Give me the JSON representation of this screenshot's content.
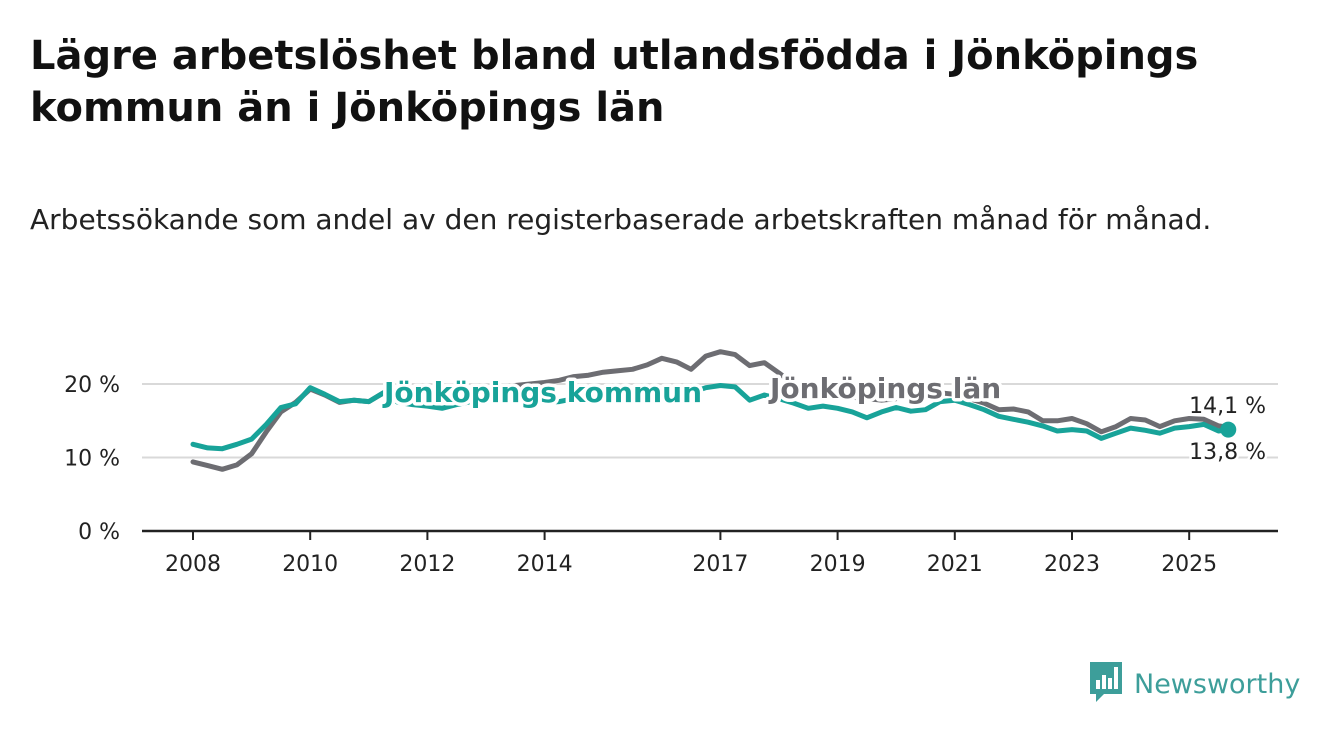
{
  "title": "Lägre arbetslöshet bland utlandsfödda i Jönköpings kommun än i Jönköpings län",
  "subtitle": "Arbetssökande som andel av den registerbaserade arbetskraften månad för månad.",
  "brand": {
    "name": "Newsworthy",
    "logo_icon": "bar-chart-badge-icon",
    "color": "#3d9e9a"
  },
  "chart_data": {
    "type": "line",
    "ylim": [
      0,
      20
    ],
    "yticks": [
      {
        "value": 0,
        "label": "0 %"
      },
      {
        "value": 10,
        "label": "10 %"
      },
      {
        "value": 20,
        "label": "20 %"
      }
    ],
    "xticks": [
      "2008",
      "2010",
      "2012",
      "2014",
      "2017",
      "2019",
      "2021",
      "2023",
      "2025"
    ],
    "grid": true,
    "legend": "inline labels",
    "series": [
      {
        "name": "Jönköpings län",
        "color": "#6d6d72",
        "end_label": "14,1 %",
        "points": [
          [
            "2008-01",
            9.4
          ],
          [
            "2008-04",
            8.9
          ],
          [
            "2008-07",
            8.4
          ],
          [
            "2008-10",
            9.0
          ],
          [
            "2009-01",
            10.5
          ],
          [
            "2009-04",
            13.5
          ],
          [
            "2009-07",
            16.2
          ],
          [
            "2009-10",
            17.5
          ],
          [
            "2010-01",
            19.3
          ],
          [
            "2010-04",
            18.5
          ],
          [
            "2010-07",
            17.5
          ],
          [
            "2010-10",
            17.8
          ],
          [
            "2011-01",
            17.6
          ],
          [
            "2011-04",
            18.8
          ],
          [
            "2011-07",
            17.8
          ],
          [
            "2011-10",
            17.5
          ],
          [
            "2012-01",
            17.8
          ],
          [
            "2012-04",
            18.5
          ],
          [
            "2012-07",
            18.8
          ],
          [
            "2012-10",
            19.0
          ],
          [
            "2013-01",
            19.2
          ],
          [
            "2013-04",
            19.5
          ],
          [
            "2013-07",
            19.8
          ],
          [
            "2013-10",
            20.0
          ],
          [
            "2014-01",
            20.2
          ],
          [
            "2014-04",
            20.5
          ],
          [
            "2014-07",
            21.0
          ],
          [
            "2014-10",
            21.2
          ],
          [
            "2015-01",
            21.6
          ],
          [
            "2015-04",
            21.8
          ],
          [
            "2015-07",
            22.0
          ],
          [
            "2015-10",
            22.6
          ],
          [
            "2016-01",
            23.5
          ],
          [
            "2016-04",
            23.0
          ],
          [
            "2016-07",
            22.0
          ],
          [
            "2016-10",
            23.8
          ],
          [
            "2017-01",
            24.4
          ],
          [
            "2017-04",
            24.0
          ],
          [
            "2017-07",
            22.5
          ],
          [
            "2017-10",
            22.9
          ],
          [
            "2018-01",
            21.5
          ],
          [
            "2018-04",
            20.0
          ],
          [
            "2018-07",
            19.0
          ],
          [
            "2018-10",
            18.6
          ],
          [
            "2019-01",
            18.4
          ],
          [
            "2019-04",
            18.2
          ],
          [
            "2019-07",
            18.0
          ],
          [
            "2019-10",
            17.8
          ],
          [
            "2020-01",
            18.0
          ],
          [
            "2020-04",
            18.3
          ],
          [
            "2020-07",
            18.5
          ],
          [
            "2020-10",
            18.8
          ],
          [
            "2021-01",
            18.6
          ],
          [
            "2021-04",
            18.0
          ],
          [
            "2021-07",
            17.4
          ],
          [
            "2021-10",
            16.5
          ],
          [
            "2022-01",
            16.6
          ],
          [
            "2022-04",
            16.2
          ],
          [
            "2022-07",
            15.0
          ],
          [
            "2022-10",
            15.0
          ],
          [
            "2023-01",
            15.3
          ],
          [
            "2023-04",
            14.6
          ],
          [
            "2023-07",
            13.5
          ],
          [
            "2023-10",
            14.2
          ],
          [
            "2024-01",
            15.3
          ],
          [
            "2024-04",
            15.1
          ],
          [
            "2024-07",
            14.2
          ],
          [
            "2024-10",
            15.0
          ],
          [
            "2025-01",
            15.3
          ],
          [
            "2025-04",
            15.2
          ],
          [
            "2025-07",
            14.3
          ],
          [
            "2025-09",
            14.1
          ]
        ]
      },
      {
        "name": "Jönköpings kommun",
        "color": "#18a399",
        "end_label": "13,8 %",
        "points": [
          [
            "2008-01",
            11.8
          ],
          [
            "2008-04",
            11.3
          ],
          [
            "2008-07",
            11.2
          ],
          [
            "2008-10",
            11.8
          ],
          [
            "2009-01",
            12.5
          ],
          [
            "2009-04",
            14.5
          ],
          [
            "2009-07",
            16.8
          ],
          [
            "2009-10",
            17.3
          ],
          [
            "2010-01",
            19.5
          ],
          [
            "2010-04",
            18.6
          ],
          [
            "2010-07",
            17.6
          ],
          [
            "2010-10",
            17.8
          ],
          [
            "2011-01",
            17.6
          ],
          [
            "2011-04",
            18.8
          ],
          [
            "2011-07",
            17.5
          ],
          [
            "2011-10",
            17.2
          ],
          [
            "2012-01",
            17.0
          ],
          [
            "2012-04",
            16.7
          ],
          [
            "2012-07",
            17.2
          ],
          [
            "2012-10",
            17.6
          ],
          [
            "2013-01",
            18.0
          ],
          [
            "2013-04",
            18.2
          ],
          [
            "2013-07",
            18.0
          ],
          [
            "2013-10",
            17.8
          ],
          [
            "2014-01",
            17.5
          ],
          [
            "2014-04",
            17.6
          ],
          [
            "2014-07",
            18.0
          ],
          [
            "2014-10",
            18.3
          ],
          [
            "2015-01",
            18.5
          ],
          [
            "2015-04",
            18.6
          ],
          [
            "2015-07",
            18.8
          ],
          [
            "2015-10",
            19.0
          ],
          [
            "2016-01",
            19.2
          ],
          [
            "2016-04",
            19.0
          ],
          [
            "2016-07",
            18.8
          ],
          [
            "2016-10",
            19.5
          ],
          [
            "2017-01",
            19.8
          ],
          [
            "2017-04",
            19.6
          ],
          [
            "2017-07",
            17.8
          ],
          [
            "2017-10",
            18.5
          ],
          [
            "2018-01",
            18.0
          ],
          [
            "2018-04",
            17.4
          ],
          [
            "2018-07",
            16.7
          ],
          [
            "2018-10",
            17.0
          ],
          [
            "2019-01",
            16.7
          ],
          [
            "2019-04",
            16.2
          ],
          [
            "2019-07",
            15.4
          ],
          [
            "2019-10",
            16.2
          ],
          [
            "2020-01",
            16.8
          ],
          [
            "2020-04",
            16.3
          ],
          [
            "2020-07",
            16.5
          ],
          [
            "2020-10",
            17.6
          ],
          [
            "2021-01",
            17.8
          ],
          [
            "2021-04",
            17.2
          ],
          [
            "2021-07",
            16.5
          ],
          [
            "2021-10",
            15.6
          ],
          [
            "2022-01",
            15.2
          ],
          [
            "2022-04",
            14.8
          ],
          [
            "2022-07",
            14.3
          ],
          [
            "2022-10",
            13.6
          ],
          [
            "2023-01",
            13.8
          ],
          [
            "2023-04",
            13.6
          ],
          [
            "2023-07",
            12.6
          ],
          [
            "2023-10",
            13.3
          ],
          [
            "2024-01",
            14.0
          ],
          [
            "2024-04",
            13.7
          ],
          [
            "2024-07",
            13.3
          ],
          [
            "2024-10",
            14.0
          ],
          [
            "2025-01",
            14.2
          ],
          [
            "2025-04",
            14.5
          ],
          [
            "2025-07",
            13.6
          ],
          [
            "2025-09",
            13.8
          ]
        ]
      }
    ]
  }
}
